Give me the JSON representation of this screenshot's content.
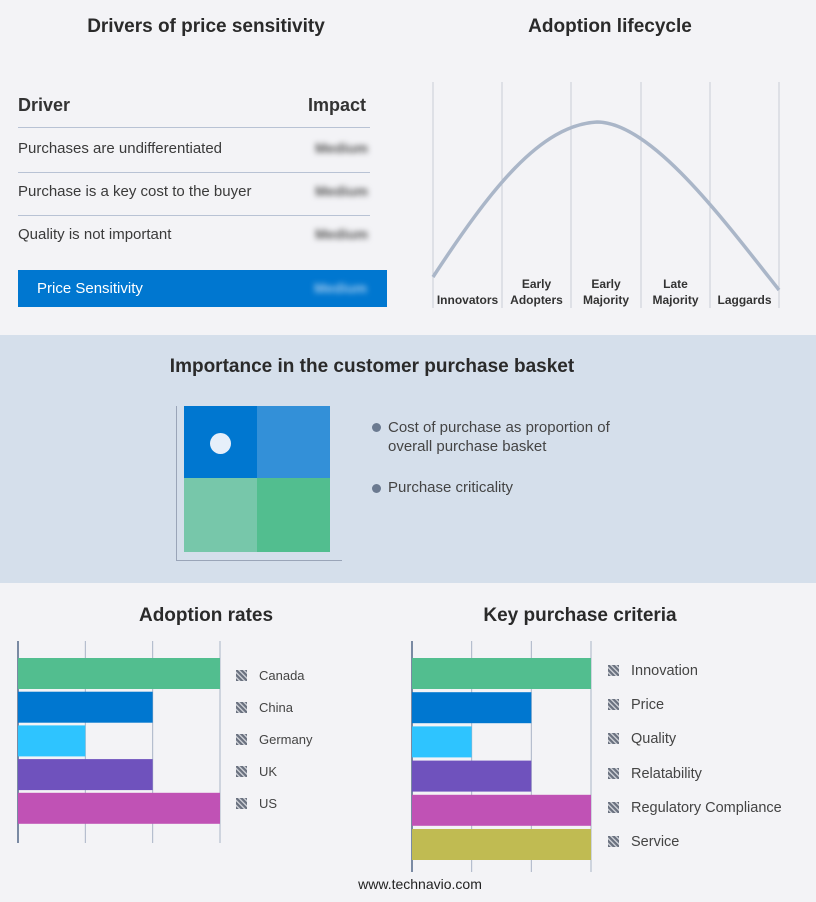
{
  "drivers": {
    "title": "Drivers of price sensitivity",
    "col_driver": "Driver",
    "col_impact": "Impact",
    "rows": [
      {
        "driver": "Purchases are undifferentiated",
        "impact": "Medium"
      },
      {
        "driver": "Purchase is a key cost to the buyer",
        "impact": "Medium"
      },
      {
        "driver": "Quality is not important",
        "impact": "Medium"
      }
    ],
    "summary": {
      "label": "Price Sensitivity",
      "impact": "Medium"
    },
    "accent": "#0077d0"
  },
  "lifecycle": {
    "title": "Adoption lifecycle",
    "stages": [
      [
        "Innovators"
      ],
      [
        "Early",
        "Adopters"
      ],
      [
        "Early",
        "Majority"
      ],
      [
        "Late",
        "Majority"
      ],
      [
        "Laggards"
      ]
    ]
  },
  "basket": {
    "title": "Importance in the customer purchase basket",
    "legend": [
      "Cost of purchase as proportion of overall purchase basket",
      "Purchase criticality"
    ],
    "quadrant_colors": [
      "#0077d0",
      "#3390d8",
      "#77c7aa",
      "#52be8f"
    ],
    "marker_quadrant": "top-left"
  },
  "chart_data": [
    {
      "type": "bar",
      "orientation": "horizontal",
      "title": "Adoption rates",
      "categories": [
        "Canada",
        "China",
        "Germany",
        "UK",
        "US"
      ],
      "values": [
        3,
        2,
        1,
        2,
        3
      ],
      "xlim": [
        0,
        3
      ],
      "grid": true,
      "legend_placement": "right",
      "colors": [
        "#52be8f",
        "#0077d0",
        "#2ec4ff",
        "#6f52bd",
        "#c052b5"
      ]
    },
    {
      "type": "bar",
      "orientation": "horizontal",
      "title": "Key purchase criteria",
      "categories": [
        "Innovation",
        "Price",
        "Quality",
        "Relatability",
        "Regulatory Compliance",
        "Service"
      ],
      "values": [
        3,
        2,
        1,
        2,
        3,
        3
      ],
      "xlim": [
        0,
        3
      ],
      "grid": true,
      "legend_placement": "right",
      "colors": [
        "#52be8f",
        "#0077d0",
        "#2ec4ff",
        "#6f52bd",
        "#c052b5",
        "#c0bb52"
      ]
    }
  ],
  "footer": {
    "url": "www.technavio.com"
  }
}
